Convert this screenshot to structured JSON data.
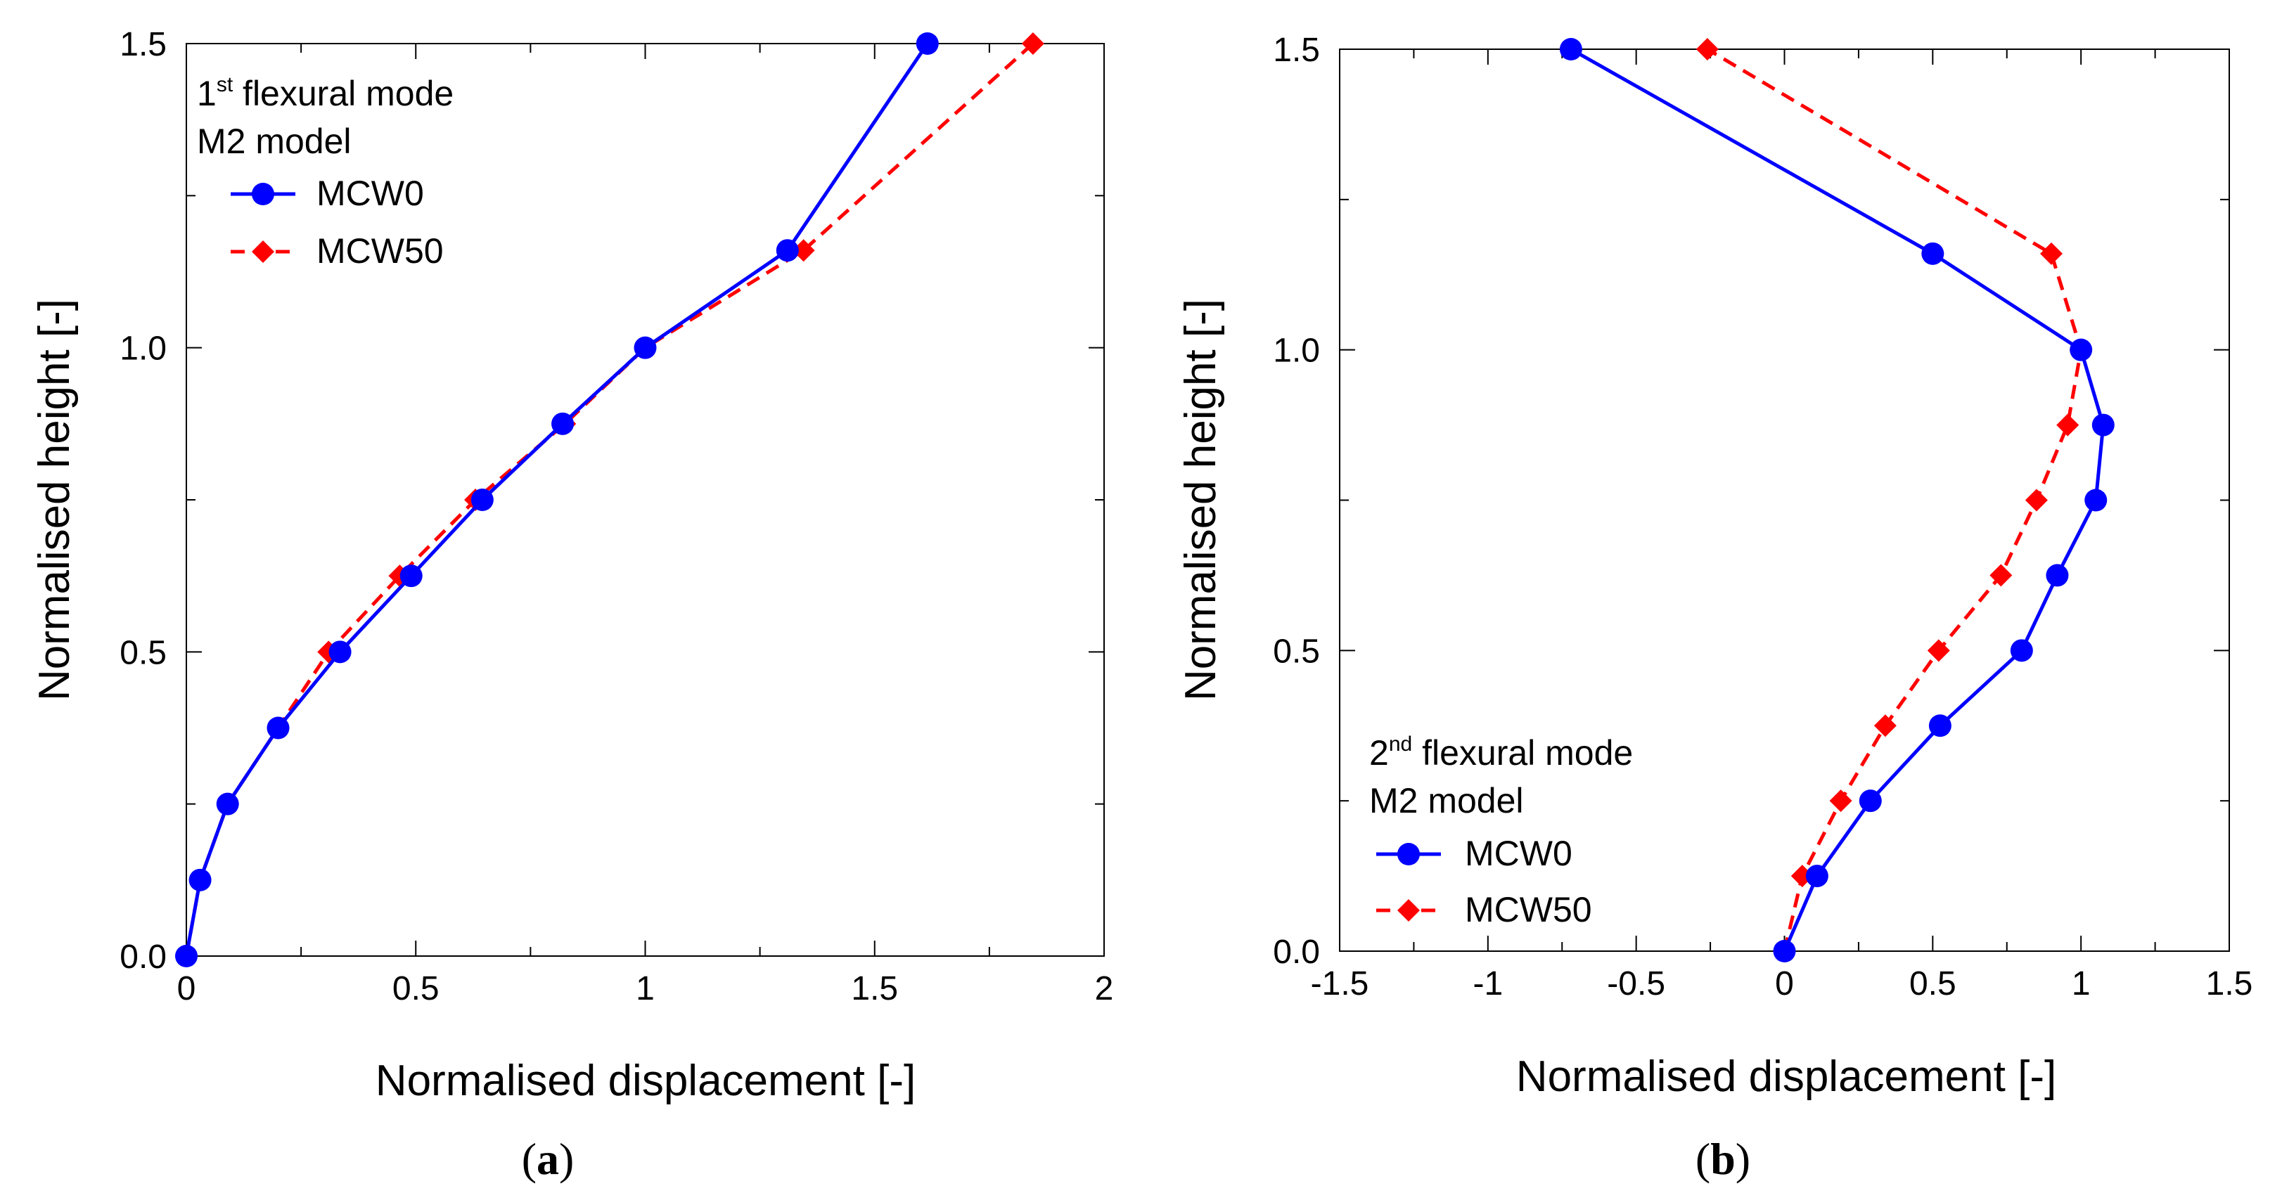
{
  "colors": {
    "MCW0": "#0000ff",
    "MCW50": "#ff0000",
    "axis": "#000000"
  },
  "chart_data": [
    {
      "type": "line",
      "panel_label": "a",
      "annotation": {
        "mode_prefix": "1",
        "mode_superscript": "st",
        "mode_suffix": " flexural mode",
        "model": "M2 model"
      },
      "xlabel": "Normalised displacement  [-]",
      "ylabel": "Normalised height  [-]",
      "xlim": [
        0,
        2
      ],
      "ylim": [
        0,
        1.5
      ],
      "xticks": [
        0,
        0.5,
        1,
        1.5,
        2
      ],
      "xtick_labels": [
        "0",
        "0.5",
        "1",
        "1.5",
        "2"
      ],
      "yticks": [
        0,
        0.5,
        1,
        1.5
      ],
      "ytick_labels": [
        "0.0",
        "0.5",
        "1.0",
        "1.5"
      ],
      "legend_position": "top-left",
      "series": [
        {
          "name": "MCW0",
          "marker": "circle",
          "linestyle": "solid",
          "points": [
            [
              0,
              0
            ],
            [
              0.03,
              0.125
            ],
            [
              0.09,
              0.25
            ],
            [
              0.2,
              0.375
            ],
            [
              0.335,
              0.5
            ],
            [
              0.49,
              0.625
            ],
            [
              0.645,
              0.75
            ],
            [
              0.82,
              0.875
            ],
            [
              1.0,
              1.0
            ],
            [
              1.31,
              1.16
            ],
            [
              1.615,
              1.5
            ]
          ]
        },
        {
          "name": "MCW50",
          "marker": "diamond",
          "linestyle": "dashed",
          "points": [
            [
              0,
              0
            ],
            [
              0.03,
              0.125
            ],
            [
              0.09,
              0.25
            ],
            [
              0.2,
              0.375
            ],
            [
              0.31,
              0.5
            ],
            [
              0.465,
              0.625
            ],
            [
              0.63,
              0.75
            ],
            [
              0.825,
              0.875
            ],
            [
              1.0,
              1.0
            ],
            [
              1.345,
              1.16
            ],
            [
              1.845,
              1.5
            ]
          ]
        }
      ]
    },
    {
      "type": "line",
      "panel_label": "b",
      "annotation": {
        "mode_prefix": "2",
        "mode_superscript": "nd",
        "mode_suffix": " flexural mode",
        "model": "M2 model"
      },
      "xlabel": "Normalised displacement  [-]",
      "ylabel": "Normalised height  [-]",
      "xlim": [
        -1.5,
        1.5
      ],
      "ylim": [
        0,
        1.5
      ],
      "xticks": [
        -1.5,
        -1,
        -0.5,
        0,
        0.5,
        1,
        1.5
      ],
      "xtick_labels": [
        "-1.5",
        "-1",
        "-0.5",
        "0",
        "0.5",
        "1",
        "1.5"
      ],
      "yticks": [
        0,
        0.5,
        1,
        1.5
      ],
      "ytick_labels": [
        "0.0",
        "0.5",
        "1.0",
        "1.5"
      ],
      "legend_position": "bottom-left",
      "series": [
        {
          "name": "MCW0",
          "marker": "circle",
          "linestyle": "solid",
          "points": [
            [
              0,
              0
            ],
            [
              0.11,
              0.125
            ],
            [
              0.29,
              0.25
            ],
            [
              0.525,
              0.375
            ],
            [
              0.8,
              0.5
            ],
            [
              0.92,
              0.625
            ],
            [
              1.05,
              0.75
            ],
            [
              1.075,
              0.875
            ],
            [
              1.0,
              1.0
            ],
            [
              0.5,
              1.16
            ],
            [
              -0.72,
              1.5
            ]
          ]
        },
        {
          "name": "MCW50",
          "marker": "diamond",
          "linestyle": "dashed",
          "points": [
            [
              0,
              0
            ],
            [
              0.06,
              0.125
            ],
            [
              0.19,
              0.25
            ],
            [
              0.34,
              0.375
            ],
            [
              0.52,
              0.5
            ],
            [
              0.73,
              0.625
            ],
            [
              0.85,
              0.75
            ],
            [
              0.955,
              0.875
            ],
            [
              1.0,
              1.0
            ],
            [
              0.9,
              1.16
            ],
            [
              -0.26,
              1.5
            ]
          ]
        }
      ]
    }
  ]
}
